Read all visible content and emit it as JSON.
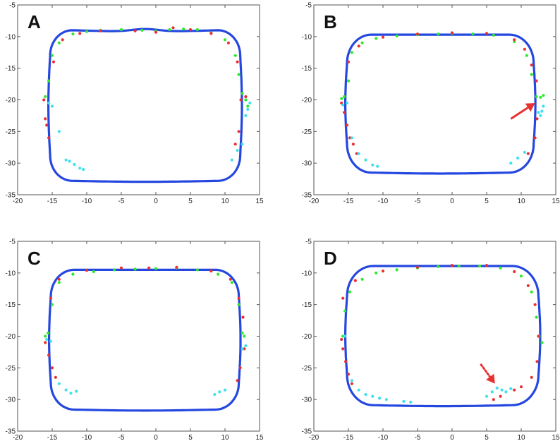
{
  "chart_data": [
    {
      "type": "scatter",
      "panel_label": "A",
      "xlim": [
        -20,
        15
      ],
      "ylim": [
        -35,
        -5
      ],
      "xticks": [
        -20,
        -15,
        -10,
        -5,
        0,
        5,
        10,
        15
      ],
      "yticks": [
        -5,
        -10,
        -15,
        -20,
        -25,
        -30,
        -35
      ],
      "grid": false,
      "contour": {
        "x0": -15.3,
        "x1": 12.2,
        "ytop": -9.0,
        "ybot": -32.8,
        "rx": 3.2,
        "ry": 4.0,
        "sag": 0.4
      },
      "series": [
        {
          "color": "#2447e0",
          "points": "blue closed contour"
        },
        {
          "color": "#2ee82e",
          "points": [
            [
              -16,
              -19.5
            ],
            [
              -15.5,
              -17
            ],
            [
              -15,
              -13
            ],
            [
              -14,
              -11
            ],
            [
              -12,
              -9.6
            ],
            [
              -10,
              -9.2
            ],
            [
              -8,
              -9.0
            ],
            [
              -5,
              -8.9
            ],
            [
              -2,
              -9.0
            ],
            [
              0,
              -9.1
            ],
            [
              2,
              -8.9
            ],
            [
              4,
              -8.8
            ],
            [
              6,
              -8.9
            ],
            [
              8,
              -9.4
            ],
            [
              10,
              -10.5
            ],
            [
              11.5,
              -13
            ],
            [
              12,
              -16
            ],
            [
              12.5,
              -19
            ],
            [
              13,
              -20
            ],
            [
              13.3,
              -21
            ]
          ]
        },
        {
          "color": "#e83030",
          "points": [
            [
              -16.2,
              -20
            ],
            [
              -16,
              -23
            ],
            [
              -15.8,
              -24
            ],
            [
              -15.5,
              -26
            ],
            [
              -14.8,
              -14
            ],
            [
              -13.5,
              -10.5
            ],
            [
              -11,
              -9.5
            ],
            [
              -8,
              -9.1
            ],
            [
              -3,
              -9.1
            ],
            [
              0,
              -9.3
            ],
            [
              2.5,
              -8.6
            ],
            [
              5,
              -8.9
            ],
            [
              8,
              -9.5
            ],
            [
              10.5,
              -11
            ],
            [
              11.8,
              -14
            ],
            [
              12.3,
              -20
            ],
            [
              12,
              -25
            ],
            [
              11.5,
              -27
            ],
            [
              13,
              -19.5
            ]
          ]
        },
        {
          "color": "#3fe0ee",
          "points": [
            [
              -15.5,
              -20.5
            ],
            [
              -15,
              -21
            ],
            [
              -14,
              -25
            ],
            [
              -13,
              -29.5
            ],
            [
              -12.5,
              -29.7
            ],
            [
              -11.8,
              -30.2
            ],
            [
              -11,
              -30.8
            ],
            [
              -10.5,
              -31
            ],
            [
              11,
              -29.5
            ],
            [
              11.8,
              -28
            ],
            [
              12.5,
              -27
            ],
            [
              13,
              -22.5
            ],
            [
              13.3,
              -21.5
            ],
            [
              13.6,
              -20.5
            ]
          ]
        }
      ]
    },
    {
      "type": "scatter",
      "panel_label": "B",
      "xlim": [
        -20,
        15
      ],
      "ylim": [
        -35,
        -5
      ],
      "xticks": [
        -20,
        -15,
        -10,
        -5,
        0,
        5,
        10,
        15
      ],
      "yticks": [
        -5,
        -10,
        -15,
        -20,
        -25,
        -30,
        -35
      ],
      "grid": false,
      "contour": {
        "x0": -15.2,
        "x1": 11.8,
        "ytop": -9.7,
        "ybot": -31.5,
        "rx": 3.5,
        "ry": 4.5,
        "sag": 0.0
      },
      "annotation": {
        "type": "arrow",
        "style": "solid",
        "color": "#e83030",
        "from": [
          8.5,
          -23
        ],
        "to": [
          12,
          -20.5
        ]
      },
      "series": [
        {
          "color": "#2447e0",
          "points": "blue closed contour"
        },
        {
          "color": "#2ee82e",
          "points": [
            [
              -16,
              -19.8
            ],
            [
              -15.6,
              -19.5
            ],
            [
              -15,
              -17
            ],
            [
              -14.5,
              -12.5
            ],
            [
              -13,
              -11
            ],
            [
              -11,
              -10.3
            ],
            [
              -8,
              -9.9
            ],
            [
              -5,
              -9.7
            ],
            [
              -2,
              -9.6
            ],
            [
              0,
              -9.5
            ],
            [
              3,
              -9.6
            ],
            [
              6,
              -9.8
            ],
            [
              9,
              -10.8
            ],
            [
              10.8,
              -13
            ],
            [
              11.5,
              -16
            ],
            [
              12.2,
              -19.5
            ],
            [
              12.8,
              -19.6
            ],
            [
              13.2,
              -19.3
            ]
          ]
        },
        {
          "color": "#e83030",
          "points": [
            [
              -16,
              -20.5
            ],
            [
              -15.6,
              -22
            ],
            [
              -15.2,
              -24
            ],
            [
              -14.8,
              -26
            ],
            [
              -14.3,
              -27
            ],
            [
              -13.8,
              -28.5
            ],
            [
              -15,
              -14
            ],
            [
              -13.5,
              -11.5
            ],
            [
              -10,
              -10.1
            ],
            [
              -5,
              -9.6
            ],
            [
              0,
              -9.4
            ],
            [
              5,
              -9.5
            ],
            [
              9,
              -10.5
            ],
            [
              10.5,
              -12
            ],
            [
              11.5,
              -14.5
            ],
            [
              12.2,
              -17
            ],
            [
              12.3,
              -23
            ],
            [
              12,
              -26
            ],
            [
              11,
              -28.5
            ]
          ]
        },
        {
          "color": "#3fe0ee",
          "points": [
            [
              -15.8,
              -20.8
            ],
            [
              -15.2,
              -20.5
            ],
            [
              -14.5,
              -26
            ],
            [
              -13.5,
              -28.5
            ],
            [
              -12.5,
              -29.5
            ],
            [
              -11.5,
              -30.3
            ],
            [
              -10.8,
              -30.5
            ],
            [
              8.5,
              -30
            ],
            [
              9.5,
              -29.2
            ],
            [
              10.5,
              -28.3
            ],
            [
              12.5,
              -22
            ],
            [
              13,
              -21.8
            ],
            [
              13.2,
              -21
            ],
            [
              12.8,
              -22.5
            ]
          ]
        }
      ]
    },
    {
      "type": "scatter",
      "panel_label": "C",
      "xlim": [
        -20,
        15
      ],
      "ylim": [
        -35,
        -5
      ],
      "xticks": [
        -20,
        -15,
        -10,
        -5,
        0,
        5,
        10,
        15
      ],
      "yticks": [
        -5,
        -10,
        -15,
        -20,
        -25,
        -30,
        -35
      ],
      "grid": false,
      "contour": {
        "x0": -15.2,
        "x1": 12.0,
        "ytop": -9.5,
        "ybot": -31.6,
        "rx": 3.4,
        "ry": 4.2,
        "sag": 0.0
      },
      "series": [
        {
          "color": "#2447e0",
          "points": "blue closed contour"
        },
        {
          "color": "#2ee82e",
          "points": [
            [
              -16,
              -20
            ],
            [
              -15.6,
              -19.5
            ],
            [
              -15,
              -15
            ],
            [
              -14,
              -11.5
            ],
            [
              -12,
              -10.2
            ],
            [
              -9,
              -9.8
            ],
            [
              -6,
              -9.5
            ],
            [
              -3,
              -9.4
            ],
            [
              0,
              -9.3
            ],
            [
              3,
              -9.2
            ],
            [
              6,
              -9.5
            ],
            [
              9,
              -10.2
            ],
            [
              11,
              -11.5
            ],
            [
              12,
              -15
            ],
            [
              12.5,
              -19.5
            ],
            [
              12.8,
              -20
            ]
          ]
        },
        {
          "color": "#e83030",
          "points": [
            [
              -16,
              -21
            ],
            [
              -15.5,
              -23
            ],
            [
              -15,
              -25
            ],
            [
              -14.5,
              -26.5
            ],
            [
              -15.2,
              -14
            ],
            [
              -14,
              -11
            ],
            [
              -10,
              -9.6
            ],
            [
              -5,
              -9.2
            ],
            [
              -1,
              -9.2
            ],
            [
              3,
              -9.1
            ],
            [
              8,
              -9.7
            ],
            [
              10.8,
              -11
            ],
            [
              12,
              -14
            ],
            [
              12.6,
              -17
            ],
            [
              12.8,
              -22
            ],
            [
              12.2,
              -25
            ],
            [
              11.8,
              -27
            ]
          ]
        },
        {
          "color": "#3fe0ee",
          "points": [
            [
              -15.8,
              -20.5
            ],
            [
              -15.2,
              -20.8
            ],
            [
              -14,
              -27.5
            ],
            [
              -13,
              -28.5
            ],
            [
              -12.3,
              -29
            ],
            [
              -11.5,
              -28.7
            ],
            [
              8.5,
              -29.2
            ],
            [
              9.2,
              -28.8
            ],
            [
              10,
              -28.5
            ],
            [
              12.5,
              -22
            ],
            [
              13,
              -21.5
            ]
          ]
        }
      ]
    },
    {
      "type": "scatter",
      "panel_label": "D",
      "xlim": [
        -20,
        15
      ],
      "ylim": [
        -35,
        -5
      ],
      "xticks": [
        -20,
        -15,
        -10,
        -5,
        0,
        5,
        10,
        15
      ],
      "yticks": [
        -5,
        -10,
        -15,
        -20,
        -25,
        -30,
        -35
      ],
      "grid": false,
      "contour": {
        "x0": -15.2,
        "x1": 12.5,
        "ytop": -8.9,
        "ybot": -30.9,
        "rx": 3.8,
        "ry": 4.8,
        "sag": 0.0
      },
      "annotation": {
        "type": "arrow",
        "style": "dotted",
        "color": "#e83030",
        "from": [
          4.2,
          -24.5
        ],
        "to": [
          6.2,
          -27.5
        ]
      },
      "series": [
        {
          "color": "#2447e0",
          "points": "blue closed contour"
        },
        {
          "color": "#2ee82e",
          "points": [
            [
              -15.8,
              -20
            ],
            [
              -15.5,
              -16
            ],
            [
              -14.8,
              -13
            ],
            [
              -13,
              -11
            ],
            [
              -11,
              -10
            ],
            [
              -8,
              -9.5
            ],
            [
              -5,
              -9.2
            ],
            [
              -2,
              -9.0
            ],
            [
              1,
              -8.9
            ],
            [
              4,
              -8.9
            ],
            [
              7,
              -9.2
            ],
            [
              10,
              -10.5
            ],
            [
              11.5,
              -13
            ],
            [
              12.2,
              -17
            ],
            [
              12.6,
              -20
            ],
            [
              13,
              -21
            ]
          ]
        },
        {
          "color": "#e83030",
          "points": [
            [
              -16,
              -20.5
            ],
            [
              -15.8,
              -22
            ],
            [
              -15.4,
              -24
            ],
            [
              -15,
              -26
            ],
            [
              -14.5,
              -27.5
            ],
            [
              -15.8,
              -14
            ],
            [
              -14,
              -11.2
            ],
            [
              -10,
              -9.7
            ],
            [
              -5,
              -9.1
            ],
            [
              0,
              -8.8
            ],
            [
              5,
              -8.8
            ],
            [
              9,
              -9.8
            ],
            [
              11,
              -12
            ],
            [
              12,
              -15
            ],
            [
              12.5,
              -20
            ],
            [
              12.3,
              -24
            ],
            [
              11.5,
              -26.5
            ],
            [
              10,
              -28
            ],
            [
              9,
              -28.5
            ],
            [
              7,
              -29.5
            ],
            [
              6,
              -30
            ]
          ]
        },
        {
          "color": "#3fe0ee",
          "points": [
            [
              -15.5,
              -20
            ],
            [
              -14.5,
              -27
            ],
            [
              -13.5,
              -28.5
            ],
            [
              -12.5,
              -29.2
            ],
            [
              -11.5,
              -29.5
            ],
            [
              -10.5,
              -29.8
            ],
            [
              -9.5,
              -30
            ],
            [
              -7,
              -30.3
            ],
            [
              -6,
              -30.4
            ],
            [
              5,
              -29.5
            ],
            [
              5.8,
              -28.8
            ],
            [
              6.5,
              -28.2
            ],
            [
              7.2,
              -28.5
            ],
            [
              7.8,
              -28.8
            ],
            [
              8.5,
              -28.3
            ]
          ]
        }
      ]
    }
  ]
}
